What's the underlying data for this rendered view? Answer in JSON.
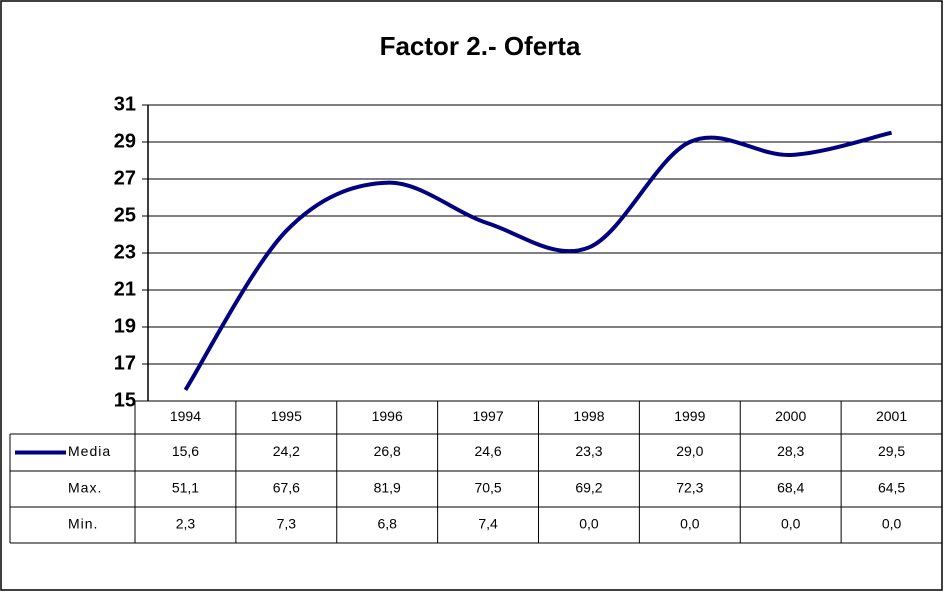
{
  "chart_data": {
    "type": "line",
    "title": "Factor 2.- Oferta",
    "categories": [
      "1994",
      "1995",
      "1996",
      "1997",
      "1998",
      "1999",
      "2000",
      "2001"
    ],
    "series": [
      {
        "name": "Media",
        "color": "#000080",
        "values": [
          15.6,
          24.2,
          26.8,
          24.6,
          23.3,
          29.0,
          28.3,
          29.5
        ],
        "value_labels": [
          "15,6",
          "24,2",
          "26,8",
          "24,6",
          "23,3",
          "29,0",
          "28,3",
          "29,5"
        ]
      }
    ],
    "table_rows": [
      {
        "name": "Max.",
        "values": [
          51.1,
          67.6,
          81.9,
          70.5,
          69.2,
          72.3,
          68.4,
          64.5
        ],
        "value_labels": [
          "51,1",
          "67,6",
          "81,9",
          "70,5",
          "69,2",
          "72,3",
          "68,4",
          "64,5"
        ]
      },
      {
        "name": "Min.",
        "values": [
          2.3,
          7.3,
          6.8,
          7.4,
          0.0,
          0.0,
          0.0,
          0.0
        ],
        "value_labels": [
          "2,3",
          "7,3",
          "6,8",
          "7,4",
          "0,0",
          "0,0",
          "0,0",
          "0,0"
        ]
      }
    ],
    "ylim": [
      15,
      31
    ],
    "yticks": [
      15,
      17,
      19,
      21,
      23,
      25,
      27,
      29,
      31
    ],
    "grid": true
  }
}
